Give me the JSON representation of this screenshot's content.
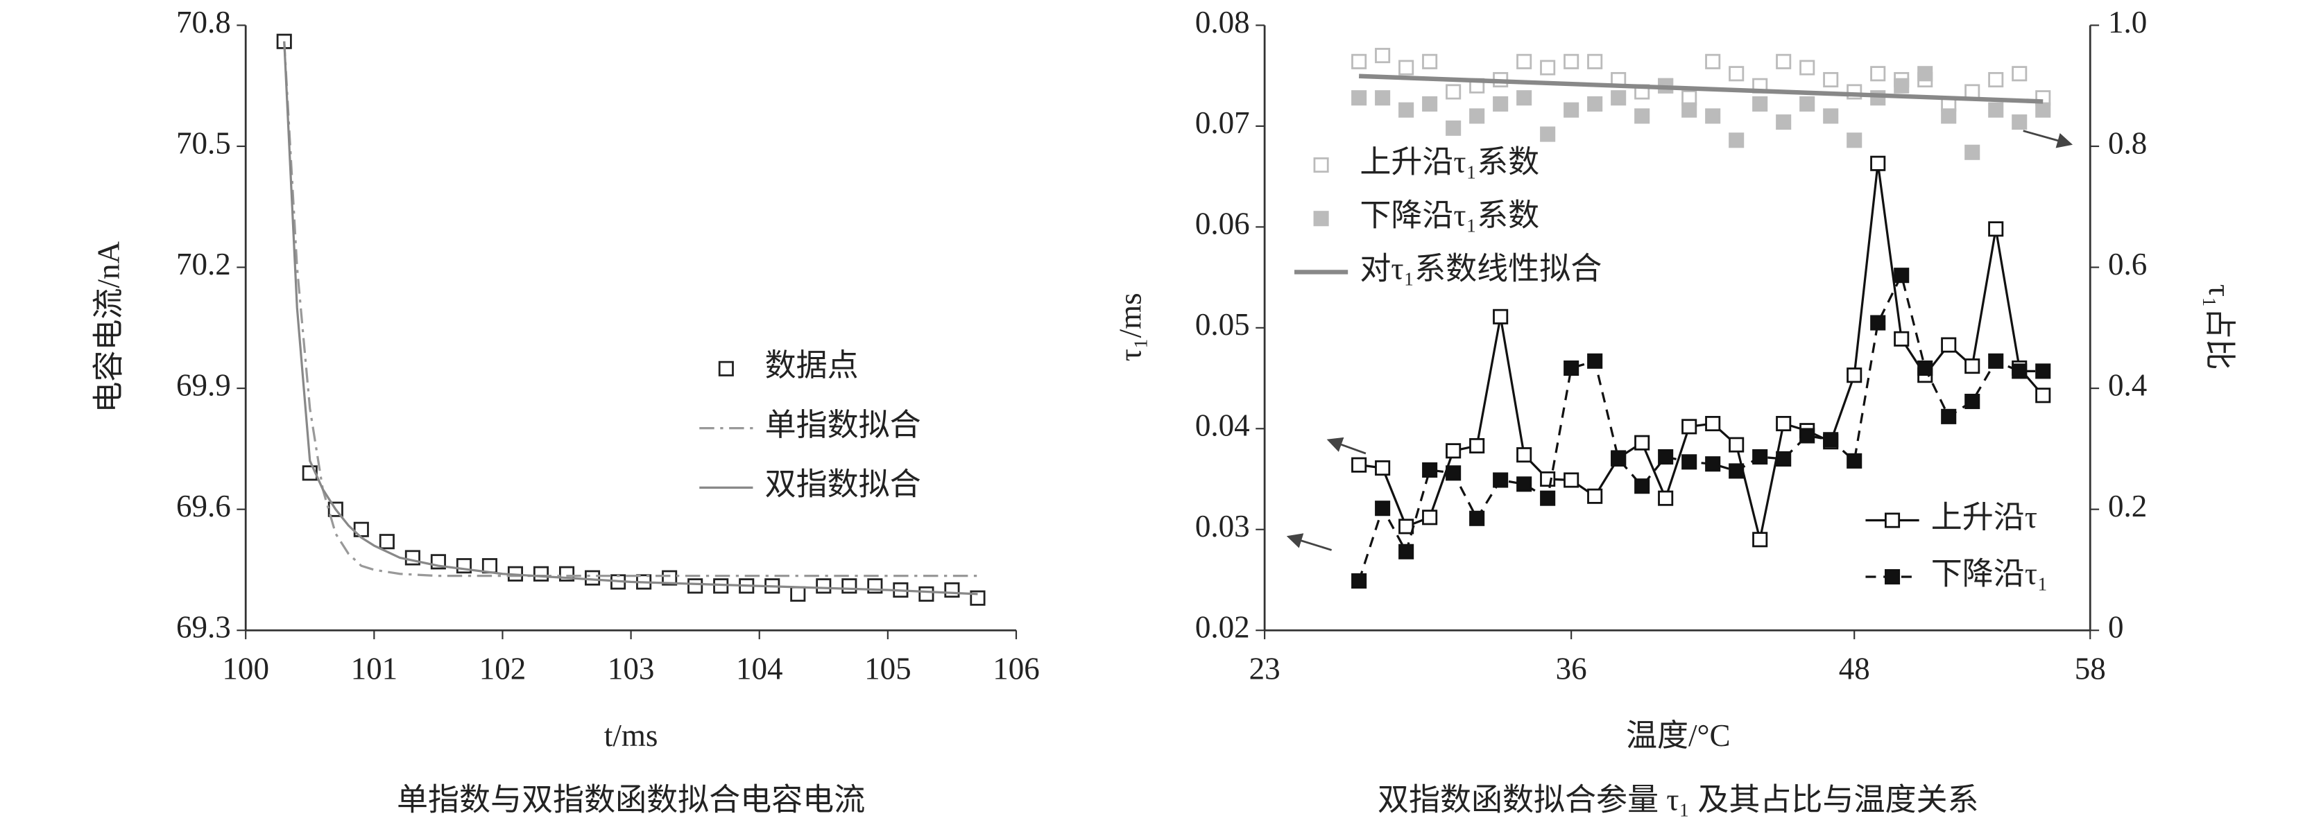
{
  "chart_data": [
    {
      "type": "line",
      "caption": "单指数与双指数函数拟合电容电流",
      "xlabel": "t/ms",
      "ylabel": "电容电流/nA",
      "xlim": [
        100,
        106
      ],
      "xticks": [
        100,
        101,
        102,
        103,
        104,
        105,
        106
      ],
      "ylim": [
        69.3,
        70.8
      ],
      "yticks": [
        69.3,
        69.6,
        69.9,
        70.2,
        70.5,
        70.8
      ],
      "legend": "center right",
      "series": [
        {
          "name": "数据点",
          "color": "#222222",
          "marker": "square-open",
          "line": null,
          "x": [
            100.3,
            100.5,
            100.7,
            100.9,
            101.1,
            101.3,
            101.5,
            101.7,
            101.9,
            102.1,
            102.3,
            102.5,
            102.7,
            102.9,
            103.1,
            103.3,
            103.5,
            103.7,
            103.9,
            104.1,
            104.3,
            104.5,
            104.7,
            104.9,
            105.1,
            105.3,
            105.5,
            105.7
          ],
          "values": [
            70.76,
            69.69,
            69.6,
            69.55,
            69.52,
            69.48,
            69.47,
            69.46,
            69.46,
            69.44,
            69.44,
            69.44,
            69.43,
            69.42,
            69.42,
            69.43,
            69.41,
            69.41,
            69.41,
            69.41,
            69.39,
            69.41,
            69.41,
            69.41,
            69.4,
            69.39,
            69.4,
            69.38
          ]
        },
        {
          "name": "单指数拟合",
          "color": "#999999",
          "marker": null,
          "line": "dashdot",
          "x": [
            100.3,
            100.4,
            100.5,
            100.6,
            100.7,
            100.8,
            100.9,
            101,
            101.2,
            101.5,
            102,
            103,
            104,
            105,
            105.7
          ],
          "values": [
            70.76,
            70.2,
            69.85,
            69.65,
            69.54,
            69.49,
            69.46,
            69.45,
            69.44,
            69.435,
            69.435,
            69.435,
            69.435,
            69.435,
            69.435
          ]
        },
        {
          "name": "双指数拟合",
          "color": "#888888",
          "marker": null,
          "line": "solid",
          "x": [
            100.3,
            100.4,
            100.5,
            100.6,
            100.7,
            100.8,
            100.9,
            101,
            101.2,
            101.5,
            102,
            103,
            104,
            105,
            105.7
          ],
          "values": [
            70.76,
            70.1,
            69.72,
            69.65,
            69.6,
            69.56,
            69.53,
            69.51,
            69.48,
            69.46,
            69.44,
            69.42,
            69.41,
            69.4,
            69.39
          ]
        }
      ]
    },
    {
      "type": "line",
      "caption": "双指数函数拟合参量 τ₁ 及其占比与温度关系",
      "xlabel": "温度/°C",
      "ylabel": "τ₁/ms",
      "y2label": "τ₁占比",
      "xlim": [
        23,
        58
      ],
      "xticks": [
        23,
        36,
        48,
        58
      ],
      "ylim": [
        0.02,
        0.08
      ],
      "yticks": [
        0.02,
        0.03,
        0.04,
        0.05,
        0.06,
        0.07,
        0.08
      ],
      "y2lim": [
        0,
        1
      ],
      "y2ticks": [
        0,
        0.2,
        0.4,
        0.6,
        0.8,
        {
          "value": 1,
          "label": "1.0"
        }
      ],
      "legend": {
        "y2": "upper left",
        "y": "lower right"
      },
      "series": [
        {
          "name": "上升沿τ₁系数",
          "color": "#bbbbbb",
          "marker": "square-open",
          "line": null,
          "axis": "y2",
          "x": [
            27,
            28,
            29,
            30,
            31,
            32,
            33,
            34,
            35,
            36,
            37,
            38,
            39,
            40,
            41,
            42,
            43,
            44,
            45,
            46,
            47,
            48,
            49,
            50,
            51,
            52,
            53,
            54,
            55,
            56
          ],
          "values": [
            0.94,
            0.95,
            0.93,
            0.94,
            0.89,
            0.9,
            0.91,
            0.94,
            0.93,
            0.94,
            0.94,
            0.91,
            0.89,
            0.9,
            0.88,
            0.94,
            0.92,
            0.9,
            0.94,
            0.93,
            0.91,
            0.89,
            0.92,
            0.91,
            0.91,
            0.87,
            0.89,
            0.91,
            0.92,
            0.88
          ]
        },
        {
          "name": "下降沿τ₁系数",
          "color": "#bbbbbb",
          "marker": "square-filled",
          "line": null,
          "axis": "y2",
          "x": [
            27,
            28,
            29,
            30,
            31,
            32,
            33,
            34,
            35,
            36,
            37,
            38,
            39,
            40,
            41,
            42,
            43,
            44,
            45,
            46,
            47,
            48,
            49,
            50,
            51,
            52,
            53,
            54,
            55,
            56
          ],
          "values": [
            0.88,
            0.88,
            0.86,
            0.87,
            0.83,
            0.85,
            0.87,
            0.88,
            0.82,
            0.86,
            0.87,
            0.88,
            0.85,
            0.9,
            0.86,
            0.85,
            0.81,
            0.87,
            0.84,
            0.87,
            0.85,
            0.81,
            0.88,
            0.9,
            0.92,
            0.85,
            0.79,
            0.86,
            0.84,
            0.86
          ]
        },
        {
          "name": "对τ₁系数线性拟合",
          "color": "#888888",
          "marker": null,
          "line": "solid",
          "axis": "y2",
          "x": [
            27,
            56
          ],
          "values": [
            0.916,
            0.874
          ]
        },
        {
          "name": "上升沿τ",
          "color": "#111111",
          "marker": "square-open",
          "line": "solid",
          "x": [
            27,
            28,
            29,
            30,
            31,
            32,
            33,
            34,
            35,
            36,
            37,
            38,
            39,
            40,
            41,
            42,
            43,
            44,
            45,
            46,
            47,
            48,
            49,
            50,
            51,
            52,
            53,
            54,
            55,
            56
          ],
          "values": [
            0.0364,
            0.0361,
            0.0303,
            0.0312,
            0.0378,
            0.0383,
            0.0511,
            0.0374,
            0.035,
            0.0349,
            0.0333,
            0.0371,
            0.0386,
            0.0331,
            0.0402,
            0.0405,
            0.0384,
            0.029,
            0.0405,
            0.0398,
            0.0387,
            0.0453,
            0.0663,
            0.0489,
            0.0453,
            0.0483,
            0.0462,
            0.0598,
            0.046,
            0.0433
          ]
        },
        {
          "name": "下降沿τ₁",
          "color": "#111111",
          "marker": "square-filled",
          "line": "dash",
          "x": [
            27,
            28,
            29,
            30,
            31,
            32,
            33,
            34,
            35,
            36,
            37,
            38,
            39,
            40,
            41,
            42,
            43,
            44,
            45,
            46,
            47,
            48,
            49,
            50,
            51,
            52,
            53,
            54,
            55,
            56
          ],
          "values": [
            0.0249,
            0.0321,
            0.0278,
            0.0359,
            0.0356,
            0.0311,
            0.0349,
            0.0345,
            0.0331,
            0.046,
            0.0467,
            0.037,
            0.0343,
            0.0372,
            0.0367,
            0.0365,
            0.0358,
            0.0372,
            0.037,
            0.0393,
            0.0389,
            0.0368,
            0.0505,
            0.0552,
            0.046,
            0.0412,
            0.0427,
            0.0467,
            0.0457,
            0.0457
          ]
        }
      ]
    }
  ]
}
